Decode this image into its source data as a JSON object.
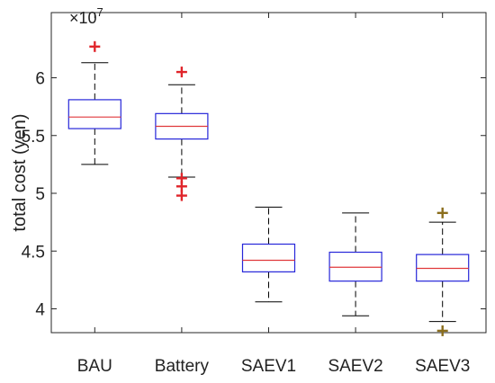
{
  "chart_data": {
    "type": "boxplot",
    "title": "",
    "xlabel": "",
    "ylabel": "total cost (yen)",
    "exponent_label": {
      "base": "×10",
      "power": "7"
    },
    "ylim": [
      3.7,
      6.5
    ],
    "yticks": [
      4,
      4.5,
      5,
      5.5,
      6
    ],
    "ytick_labels": [
      "4",
      "4.5",
      "5",
      "5.5",
      "6"
    ],
    "grid": false,
    "colors": {
      "box": "#2626d9",
      "median": "#e0383b",
      "whisker": "#000000",
      "outlier_red": "#e0252b",
      "outlier_olive": "#8a6d1c",
      "axis": "#262626"
    },
    "categories": [
      "BAU",
      "Battery",
      "SAEV1",
      "SAEV2",
      "SAEV3"
    ],
    "series": [
      {
        "category": "BAU",
        "whisker_low": 5.25,
        "q1": 5.56,
        "median": 5.66,
        "q3": 5.81,
        "whisker_high": 6.13,
        "outliers": [
          6.27
        ],
        "outlier_color": "outlier_red"
      },
      {
        "category": "Battery",
        "whisker_low": 5.14,
        "q1": 5.47,
        "median": 5.58,
        "q3": 5.69,
        "whisker_high": 5.94,
        "outliers": [
          6.05,
          5.13,
          5.06,
          4.98
        ],
        "outlier_color": "outlier_red"
      },
      {
        "category": "SAEV1",
        "whisker_low": 4.06,
        "q1": 4.32,
        "median": 4.42,
        "q3": 4.56,
        "whisker_high": 4.88,
        "outliers": [],
        "outlier_color": "outlier_red"
      },
      {
        "category": "SAEV2",
        "whisker_low": 3.94,
        "q1": 4.24,
        "median": 4.36,
        "q3": 4.49,
        "whisker_high": 4.83,
        "outliers": [],
        "outlier_color": "outlier_red"
      },
      {
        "category": "SAEV3",
        "whisker_low": 3.89,
        "q1": 4.24,
        "median": 4.35,
        "q3": 4.47,
        "whisker_high": 4.75,
        "outliers": [
          4.83,
          3.81
        ],
        "outlier_color": "outlier_olive"
      }
    ]
  }
}
